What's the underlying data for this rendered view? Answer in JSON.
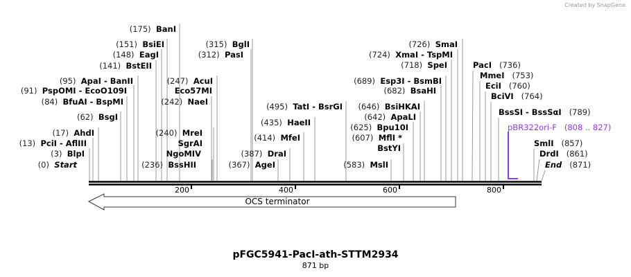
{
  "credit": "Created by SnapGene",
  "title": "pFGC5941-PacI-ath-STTM2934",
  "length": "871 bp",
  "ruler_ticks": [
    "200",
    "400",
    "600",
    "800"
  ],
  "feature": {
    "label": "OCS terminator",
    "direction": "reverse"
  },
  "primer": {
    "name": "pBR322ori-F",
    "range": "(808 .. 827)",
    "color": "#9b30ff"
  },
  "sites": [
    {
      "pos": "(175)",
      "name": "BanI"
    },
    {
      "pos": "(151)",
      "name": "BsiEI"
    },
    {
      "pos": "(148)",
      "name": "EagI"
    },
    {
      "pos": "(141)",
      "name": "BstEII"
    },
    {
      "pos": "(95)",
      "name": "ApaI  - BanII"
    },
    {
      "pos": "(91)",
      "name": "PspOMI  - EcoO109I"
    },
    {
      "pos": "(84)",
      "name": "BfuAI  - BspMI"
    },
    {
      "pos": "(62)",
      "name": "BsgI"
    },
    {
      "pos": "(17)",
      "name": "AhdI"
    },
    {
      "pos": "(13)",
      "name": "PciI  - AflIII"
    },
    {
      "pos": "(3)",
      "name": "BlpI"
    },
    {
      "pos": "(0)",
      "name": "Start"
    },
    {
      "pos": "(247)",
      "name": "AcuI"
    },
    {
      "pos": "",
      "name": "Eco57MI"
    },
    {
      "pos": "(242)",
      "name": "NaeI"
    },
    {
      "pos": "(240)",
      "name": "MreI"
    },
    {
      "pos": "",
      "name": "SgrAI"
    },
    {
      "pos": "",
      "name": "NgoMIV"
    },
    {
      "pos": "(236)",
      "name": "BssHII"
    },
    {
      "pos": "(315)",
      "name": "BglI"
    },
    {
      "pos": "(312)",
      "name": "PasI"
    },
    {
      "pos": "(495)",
      "name": "TatI  - BsrGI"
    },
    {
      "pos": "(435)",
      "name": "HaeII"
    },
    {
      "pos": "(414)",
      "name": "MfeI"
    },
    {
      "pos": "(387)",
      "name": "DraI"
    },
    {
      "pos": "(367)",
      "name": "AgeI"
    },
    {
      "pos": "(583)",
      "name": "MslI"
    },
    {
      "pos": "(607)",
      "name": "MflI *"
    },
    {
      "pos": "",
      "name": "BstYI"
    },
    {
      "pos": "(625)",
      "name": "Bpu10I"
    },
    {
      "pos": "(642)",
      "name": "ApaLI"
    },
    {
      "pos": "(646)",
      "name": "BsiHKAI"
    },
    {
      "pos": "(682)",
      "name": "BsaHI"
    },
    {
      "pos": "(689)",
      "name": "Esp3I  - BsmBI"
    },
    {
      "pos": "(718)",
      "name": "SpeI"
    },
    {
      "pos": "(724)",
      "name": "XmaI  - TspMI"
    },
    {
      "pos": "(726)",
      "name": "SmaI"
    },
    {
      "pos": "(736)",
      "name": "PacI"
    },
    {
      "pos": "(753)",
      "name": "MmeI"
    },
    {
      "pos": "(760)",
      "name": "EciI"
    },
    {
      "pos": "(764)",
      "name": "BciVI"
    },
    {
      "pos": "(789)",
      "name": "BssSI  - BssSαI"
    },
    {
      "pos": "(857)",
      "name": "SmlI"
    },
    {
      "pos": "(861)",
      "name": "DrdI"
    },
    {
      "pos": "(871)",
      "name": "End"
    }
  ]
}
